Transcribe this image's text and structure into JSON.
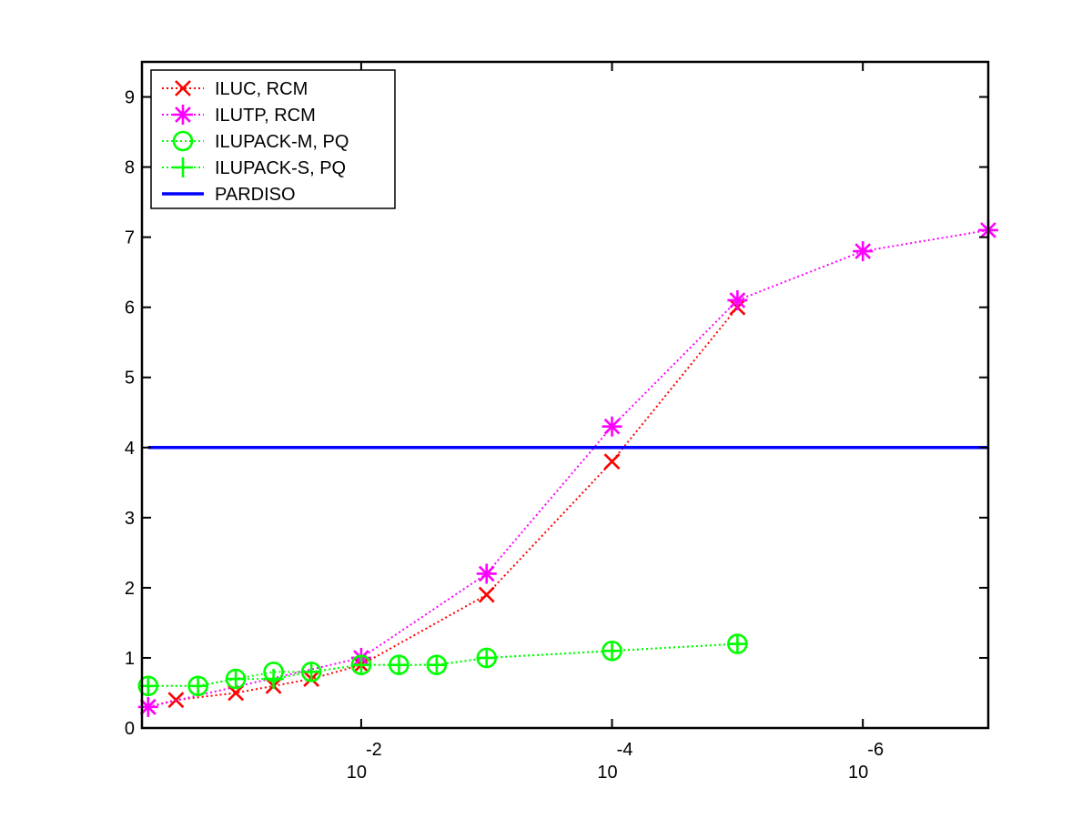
{
  "chart_data": {
    "type": "line",
    "title": "",
    "xlabel": "",
    "ylabel": "",
    "x_scale": "log",
    "x_reversed": true,
    "xlim": [
      0.56,
      1e-07
    ],
    "ylim": [
      0,
      9.5
    ],
    "grid": false,
    "legend_position": "top-left",
    "x_ticks": [
      {
        "value": 0.01,
        "base": "10",
        "exponent": "-2"
      },
      {
        "value": 0.0001,
        "base": "10",
        "exponent": "-4"
      },
      {
        "value": 1e-06,
        "base": "10",
        "exponent": "-6"
      }
    ],
    "y_ticks": [
      "0",
      "1",
      "2",
      "3",
      "4",
      "5",
      "6",
      "7",
      "8",
      "9"
    ],
    "series": [
      {
        "name": "ILUC, RCM",
        "color": "#ff0000",
        "marker": "x",
        "line": "dotted",
        "points": [
          [
            0.5,
            0.3
          ],
          [
            0.3,
            0.4
          ],
          [
            0.1,
            0.5
          ],
          [
            0.05,
            0.6
          ],
          [
            0.025,
            0.7
          ],
          [
            0.01,
            0.9
          ],
          [
            0.001,
            1.9
          ],
          [
            0.0001,
            3.8
          ],
          [
            1e-05,
            6.0
          ]
        ]
      },
      {
        "name": "ILUTP, RCM",
        "color": "#ff00ff",
        "marker": "asterisk",
        "line": "dotted",
        "points": [
          [
            0.5,
            0.3
          ],
          [
            0.01,
            1.0
          ],
          [
            0.001,
            2.2
          ],
          [
            0.0001,
            4.3
          ],
          [
            1e-05,
            6.1
          ],
          [
            1e-06,
            6.8
          ],
          [
            1e-07,
            7.1
          ]
        ]
      },
      {
        "name": "ILUPACK-M, PQ",
        "color": "#00ff00",
        "marker": "circle",
        "line": "dotted",
        "points": [
          [
            0.5,
            0.6
          ],
          [
            0.2,
            0.6
          ],
          [
            0.1,
            0.7
          ],
          [
            0.05,
            0.8
          ],
          [
            0.025,
            0.8
          ],
          [
            0.01,
            0.9
          ],
          [
            0.005,
            0.9
          ],
          [
            0.0025,
            0.9
          ],
          [
            0.001,
            1.0
          ],
          [
            0.0001,
            1.1
          ],
          [
            1e-05,
            1.2
          ]
        ]
      },
      {
        "name": "ILUPACK-S, PQ",
        "color": "#00ff00",
        "marker": "plus",
        "line": "dotted",
        "points": [
          [
            0.5,
            0.6
          ],
          [
            0.2,
            0.6
          ],
          [
            0.1,
            0.7
          ],
          [
            0.05,
            0.7
          ],
          [
            0.025,
            0.8
          ],
          [
            0.01,
            0.9
          ],
          [
            0.005,
            0.9
          ],
          [
            0.0025,
            0.9
          ],
          [
            0.001,
            1.0
          ],
          [
            0.0001,
            1.1
          ],
          [
            1e-05,
            1.2
          ]
        ]
      },
      {
        "name": "PARDISO",
        "color": "#0000ff",
        "marker": "none",
        "line": "solid",
        "points": [
          [
            0.5,
            4.0
          ],
          [
            1e-07,
            4.0
          ]
        ]
      }
    ]
  }
}
